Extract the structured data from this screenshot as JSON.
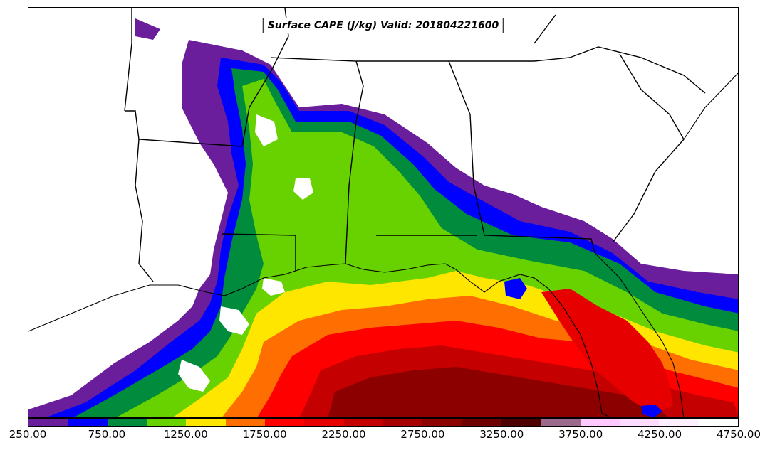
{
  "title": "Surface CAPE (J/kg) Valid: 201804221600",
  "colorbar": {
    "colors": [
      "#6a1e9c",
      "#0000ff",
      "#008c3c",
      "#68d200",
      "#ffe600",
      "#ff6e00",
      "#ff0000",
      "#e60000",
      "#c40000",
      "#a60000",
      "#8c0000",
      "#6e0000",
      "#4d0000",
      "#9c6a8c",
      "#ffc8ff",
      "#ffdcff",
      "#fff0ff",
      "#ffffff"
    ],
    "tick_labels": [
      "250.00",
      "750.00",
      "1250.00",
      "1750.00",
      "2250.00",
      "2750.00",
      "3250.00",
      "3750.00",
      "4250.00",
      "4750.00"
    ],
    "min": 250,
    "max": 4750
  }
}
